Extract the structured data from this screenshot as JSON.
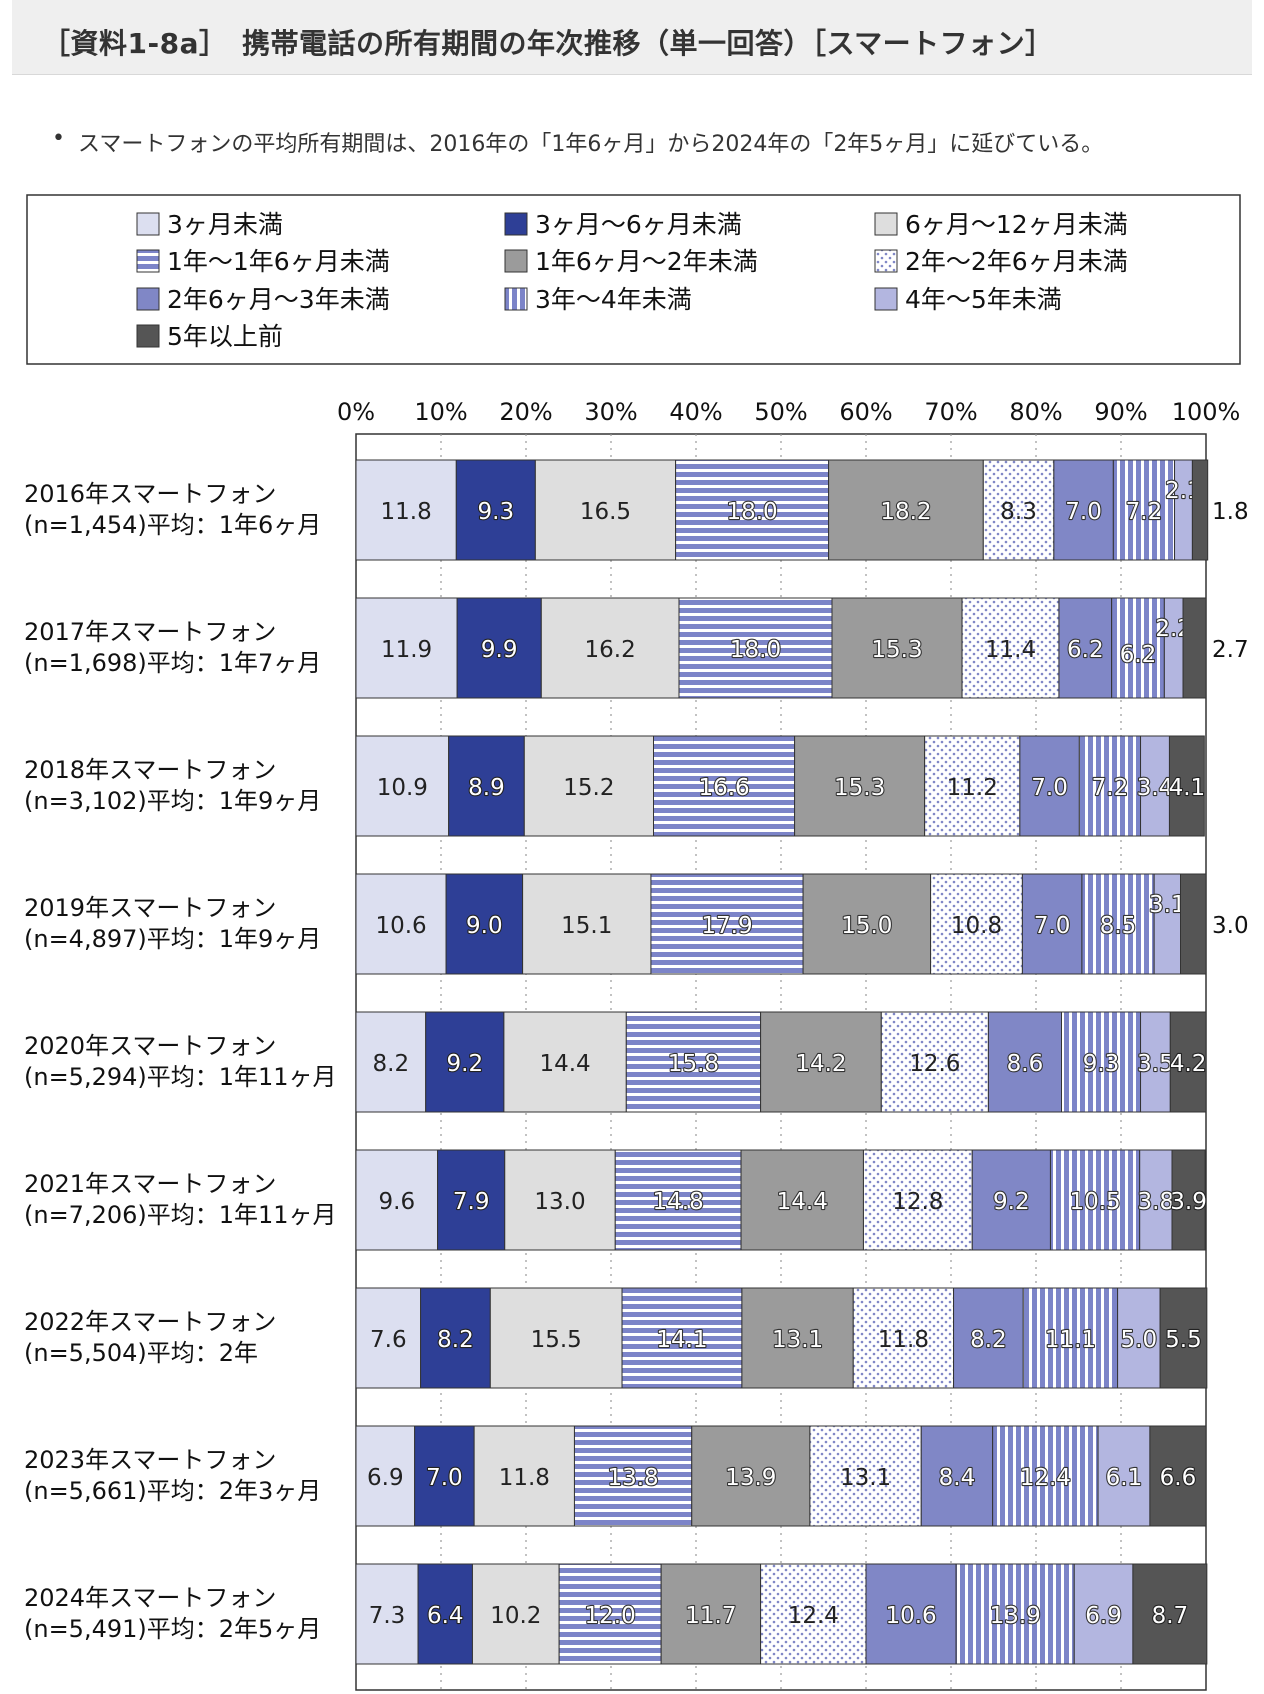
{
  "header": {
    "title": "［資料1-8a］　携帯電話の所有期間の年次推移（単一回答）［スマートフォン］"
  },
  "summary": {
    "bullet": "•",
    "text": "スマートフォンの平均所有期間は、2016年の「1年6ヶ月」から2024年の「2年5ヶ月」に延びている。"
  },
  "chart_data": {
    "type": "bar",
    "orientation": "horizontal",
    "stacked": true,
    "percent": true,
    "xlim": [
      0,
      100
    ],
    "x_ticks": [
      "0%",
      "10%",
      "20%",
      "30%",
      "40%",
      "50%",
      "60%",
      "70%",
      "80%",
      "90%",
      "100%"
    ],
    "grid": "vertical dotted",
    "legend_position": "top",
    "categories": [
      {
        "line1": "2016年スマートフォン",
        "line2": "(n=1,454)平均：1年6ヶ月"
      },
      {
        "line1": "2017年スマートフォン",
        "line2": "(n=1,698)平均：1年7ヶ月"
      },
      {
        "line1": "2018年スマートフォン",
        "line2": "(n=3,102)平均：1年9ヶ月"
      },
      {
        "line1": "2019年スマートフォン",
        "line2": "(n=4,897)平均：1年9ヶ月"
      },
      {
        "line1": "2020年スマートフォン",
        "line2": "(n=5,294)平均：1年11ヶ月"
      },
      {
        "line1": "2021年スマートフォン",
        "line2": "(n=7,206)平均：1年11ヶ月"
      },
      {
        "line1": "2022年スマートフォン",
        "line2": "(n=5,504)平均：2年"
      },
      {
        "line1": "2023年スマートフォン",
        "line2": "(n=5,661)平均：2年3ヶ月"
      },
      {
        "line1": "2024年スマートフォン",
        "line2": "(n=5,491)平均：2年5ヶ月"
      }
    ],
    "series": [
      {
        "name": "3ヶ月未満",
        "color": "#dcdff0",
        "pattern": "solid",
        "text_color": "#222222",
        "values": [
          11.8,
          11.9,
          10.9,
          10.6,
          8.2,
          9.6,
          7.6,
          6.9,
          7.3
        ]
      },
      {
        "name": "3ヶ月～6ヶ月未満",
        "color": "#2e3f96",
        "pattern": "solid",
        "text_color": "#ffffff",
        "text_outline": "#222222",
        "values": [
          9.3,
          9.9,
          8.9,
          9.0,
          9.2,
          7.9,
          8.2,
          7.0,
          6.4
        ]
      },
      {
        "name": "6ヶ月～12ヶ月未満",
        "color": "#dedede",
        "pattern": "solid",
        "text_color": "#222222",
        "values": [
          16.5,
          16.2,
          15.2,
          15.1,
          14.4,
          13.0,
          15.5,
          11.8,
          10.2
        ]
      },
      {
        "name": "1年～1年6ヶ月未満",
        "color": "#7c84c8",
        "pattern": "hstripe",
        "text_color": "#ffffff",
        "text_outline": "#333333",
        "values": [
          18.0,
          18.0,
          16.6,
          17.9,
          15.8,
          14.8,
          14.1,
          13.8,
          12.0
        ]
      },
      {
        "name": "1年6ヶ月～2年未満",
        "color": "#9b9b9b",
        "pattern": "solid",
        "text_color": "#ffffff",
        "text_outline": "#333333",
        "values": [
          18.2,
          15.3,
          15.3,
          15.0,
          14.2,
          14.4,
          13.1,
          13.9,
          11.7
        ]
      },
      {
        "name": "2年～2年6ヶ月未満",
        "color": "#ffffff",
        "pattern": "dots",
        "text_color": "#222222",
        "values": [
          8.3,
          11.4,
          11.2,
          10.8,
          12.6,
          12.8,
          11.8,
          13.1,
          12.4
        ]
      },
      {
        "name": "2年6ヶ月～3年未満",
        "color": "#8087c6",
        "pattern": "solid",
        "text_color": "#ffffff",
        "text_outline": "#333333",
        "values": [
          7.0,
          6.2,
          7.0,
          7.0,
          8.6,
          9.2,
          8.2,
          8.4,
          10.6
        ]
      },
      {
        "name": "3年～4年未満",
        "color": "#7c84c8",
        "pattern": "vstripe",
        "text_color": "#ffffff",
        "text_outline": "#333333",
        "values": [
          7.2,
          6.2,
          7.2,
          8.5,
          9.3,
          10.5,
          11.1,
          12.4,
          13.9
        ]
      },
      {
        "name": "4年～5年未満",
        "color": "#b3b6e0",
        "pattern": "solid",
        "text_color": "#ffffff",
        "text_outline": "#333333",
        "values": [
          2.1,
          2.2,
          3.4,
          3.1,
          3.5,
          3.8,
          5.0,
          6.1,
          6.9
        ]
      },
      {
        "name": "5年以上前",
        "color": "#555555",
        "pattern": "solid",
        "text_color": "#ffffff",
        "text_outline": "#222222",
        "values": [
          1.8,
          2.7,
          4.1,
          3.0,
          4.2,
          3.9,
          5.5,
          6.6,
          8.7
        ]
      }
    ]
  }
}
